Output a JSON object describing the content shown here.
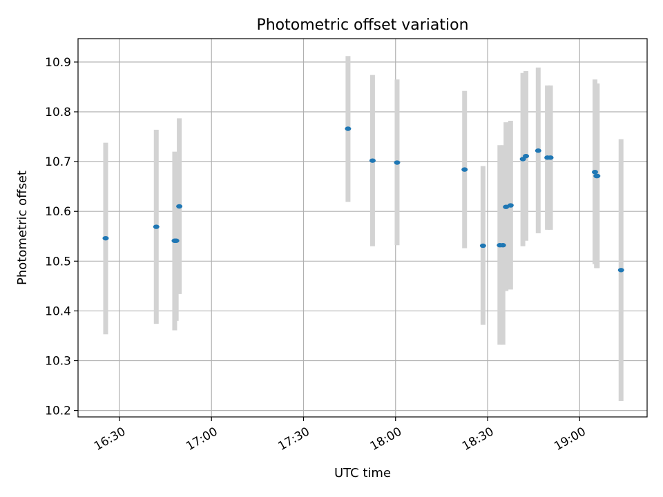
{
  "chart_data": {
    "type": "scatter",
    "title": "Photometric offset variation",
    "xlabel": "UTC time",
    "ylabel": "Photometric offset",
    "x_ticks": [
      "16:30",
      "17:00",
      "17:30",
      "18:00",
      "18:30",
      "19:00"
    ],
    "y_ticks": [
      "10.2",
      "10.3",
      "10.4",
      "10.5",
      "10.6",
      "10.7",
      "10.8",
      "10.9"
    ],
    "xlim": [
      "16:16:30",
      "19:22:00"
    ],
    "ylim": [
      10.187,
      10.947
    ],
    "grid": true,
    "legend": "none",
    "series": [
      {
        "color": "#1f77b4",
        "errorbar_color": "#d3d3d3",
        "points": [
          {
            "x": "16:25:30",
            "y": 10.546,
            "low": 10.353,
            "high": 10.738
          },
          {
            "x": "16:42:00",
            "y": 10.569,
            "low": 10.374,
            "high": 10.764
          },
          {
            "x": "16:48:00",
            "y": 10.541,
            "low": 10.361,
            "high": 10.72
          },
          {
            "x": "16:48:30",
            "y": 10.541,
            "low": 10.38,
            "high": 10.7
          },
          {
            "x": "16:49:30",
            "y": 10.61,
            "low": 10.434,
            "high": 10.787
          },
          {
            "x": "17:44:30",
            "y": 10.766,
            "low": 10.619,
            "high": 10.912
          },
          {
            "x": "17:52:30",
            "y": 10.702,
            "low": 10.53,
            "high": 10.874
          },
          {
            "x": "18:00:30",
            "y": 10.698,
            "low": 10.532,
            "high": 10.865
          },
          {
            "x": "18:22:30",
            "y": 10.684,
            "low": 10.526,
            "high": 10.842
          },
          {
            "x": "18:28:30",
            "y": 10.531,
            "low": 10.372,
            "high": 10.691
          },
          {
            "x": "18:34:00",
            "y": 10.532,
            "low": 10.332,
            "high": 10.733
          },
          {
            "x": "18:35:00",
            "y": 10.532,
            "low": 10.332,
            "high": 10.733
          },
          {
            "x": "18:36:00",
            "y": 10.609,
            "low": 10.44,
            "high": 10.779
          },
          {
            "x": "18:37:30",
            "y": 10.612,
            "low": 10.443,
            "high": 10.782
          },
          {
            "x": "18:41:30",
            "y": 10.705,
            "low": 10.53,
            "high": 10.878
          },
          {
            "x": "18:42:30",
            "y": 10.711,
            "low": 10.541,
            "high": 10.882
          },
          {
            "x": "18:46:30",
            "y": 10.722,
            "low": 10.556,
            "high": 10.889
          },
          {
            "x": "18:49:30",
            "y": 10.708,
            "low": 10.563,
            "high": 10.853
          },
          {
            "x": "18:50:30",
            "y": 10.708,
            "low": 10.563,
            "high": 10.853
          },
          {
            "x": "19:05:00",
            "y": 10.679,
            "low": 10.494,
            "high": 10.865
          },
          {
            "x": "19:05:30",
            "y": 10.671,
            "low": 10.486,
            "high": 10.857
          },
          {
            "x": "19:05:45",
            "y": 10.671,
            "low": 10.486,
            "high": 10.857
          },
          {
            "x": "19:13:30",
            "y": 10.482,
            "low": 10.219,
            "high": 10.745
          }
        ]
      }
    ]
  }
}
